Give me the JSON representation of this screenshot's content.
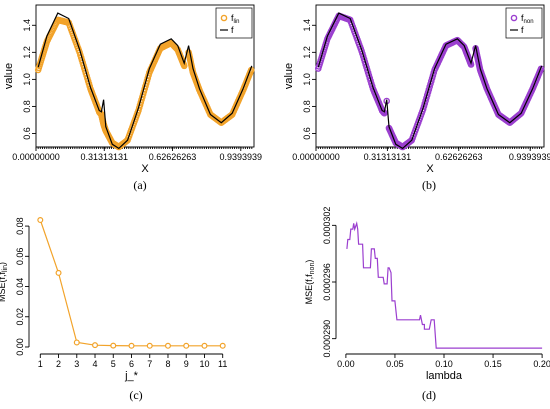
{
  "chart_data": [
    {
      "type": "scatter",
      "caption": "(a)",
      "xlabel": "X",
      "ylabel": "value",
      "xlim": [
        0,
        1
      ],
      "ylim": [
        0.5,
        1.55
      ],
      "x_tick_labels": [
        "0.00000000",
        "0.31313131",
        "0.62626263",
        "0.9393939"
      ],
      "x_ticks": [
        0,
        0.31313131,
        0.62626263,
        0.9393939
      ],
      "y_ticks": [
        0.6,
        0.8,
        1.0,
        1.2,
        1.4
      ],
      "y_tick_labels": [
        "0.6",
        "0.8",
        "1.0",
        "1.2",
        "1.4"
      ],
      "legend": {
        "placement": "top-right",
        "entries": [
          {
            "label": "f",
            "sub": "lin"
          },
          {
            "label": "f",
            "sub": ""
          }
        ]
      },
      "colors": {
        "fit": "#f2a32a",
        "truth": "#000000"
      },
      "series": [
        {
          "name": "f_lin",
          "style": "points",
          "x": [
            0.01,
            0.05,
            0.1,
            0.15,
            0.2,
            0.25,
            0.29,
            0.3,
            0.31,
            0.32,
            0.35,
            0.38,
            0.42,
            0.47,
            0.52,
            0.57,
            0.62,
            0.65,
            0.68,
            0.7,
            0.72,
            0.75,
            0.8,
            0.85,
            0.9,
            0.95,
            0.99
          ],
          "y": [
            1.07,
            1.28,
            1.44,
            1.42,
            1.2,
            0.93,
            0.76,
            0.74,
            0.67,
            0.62,
            0.53,
            0.5,
            0.55,
            0.77,
            1.05,
            1.23,
            1.27,
            1.22,
            1.1,
            1.2,
            1.05,
            0.92,
            0.74,
            0.68,
            0.74,
            0.92,
            1.08
          ]
        },
        {
          "name": "f",
          "style": "line",
          "x": [
            0.01,
            0.05,
            0.1,
            0.15,
            0.2,
            0.25,
            0.29,
            0.3,
            0.31,
            0.32,
            0.35,
            0.38,
            0.42,
            0.47,
            0.52,
            0.57,
            0.62,
            0.65,
            0.68,
            0.7,
            0.72,
            0.75,
            0.8,
            0.85,
            0.9,
            0.95,
            0.99
          ],
          "y": [
            1.09,
            1.32,
            1.49,
            1.45,
            1.22,
            0.94,
            0.77,
            0.76,
            0.85,
            0.65,
            0.52,
            0.49,
            0.55,
            0.79,
            1.08,
            1.26,
            1.3,
            1.25,
            1.12,
            1.25,
            1.08,
            0.93,
            0.74,
            0.68,
            0.75,
            0.93,
            1.1
          ]
        }
      ]
    },
    {
      "type": "scatter",
      "caption": "(b)",
      "xlabel": "X",
      "ylabel": "value",
      "xlim": [
        0,
        1
      ],
      "ylim": [
        0.5,
        1.55
      ],
      "x_tick_labels": [
        "0.00000000",
        "0.31313131",
        "0.62626263",
        "0.9393939"
      ],
      "x_ticks": [
        0,
        0.31313131,
        0.62626263,
        0.9393939
      ],
      "y_ticks": [
        0.6,
        0.8,
        1.0,
        1.2,
        1.4
      ],
      "y_tick_labels": [
        "0.6",
        "0.8",
        "1.0",
        "1.2",
        "1.4"
      ],
      "legend": {
        "placement": "top-right",
        "entries": [
          {
            "label": "f",
            "sub": "non"
          },
          {
            "label": "f",
            "sub": ""
          }
        ]
      },
      "colors": {
        "fit": "#9b3fcf",
        "truth": "#000000"
      },
      "series": [
        {
          "name": "f_non",
          "style": "points",
          "x": [
            0.01,
            0.05,
            0.1,
            0.15,
            0.2,
            0.25,
            0.29,
            0.3,
            0.31,
            0.32,
            0.35,
            0.38,
            0.42,
            0.47,
            0.52,
            0.57,
            0.62,
            0.65,
            0.68,
            0.7,
            0.72,
            0.75,
            0.8,
            0.85,
            0.9,
            0.95,
            0.99
          ],
          "y": [
            1.08,
            1.3,
            1.47,
            1.44,
            1.21,
            0.93,
            0.77,
            0.75,
            0.84,
            0.64,
            0.53,
            0.5,
            0.55,
            0.78,
            1.07,
            1.25,
            1.29,
            1.24,
            1.11,
            1.23,
            1.07,
            0.93,
            0.74,
            0.68,
            0.75,
            0.93,
            1.09
          ]
        },
        {
          "name": "f",
          "style": "line",
          "x": [
            0.01,
            0.05,
            0.1,
            0.15,
            0.2,
            0.25,
            0.29,
            0.3,
            0.31,
            0.32,
            0.35,
            0.38,
            0.42,
            0.47,
            0.52,
            0.57,
            0.62,
            0.65,
            0.68,
            0.7,
            0.72,
            0.75,
            0.8,
            0.85,
            0.9,
            0.95,
            0.99
          ],
          "y": [
            1.09,
            1.32,
            1.49,
            1.45,
            1.22,
            0.94,
            0.77,
            0.76,
            0.85,
            0.65,
            0.52,
            0.49,
            0.55,
            0.79,
            1.08,
            1.26,
            1.3,
            1.25,
            1.12,
            1.25,
            1.08,
            0.93,
            0.74,
            0.68,
            0.75,
            0.93,
            1.1
          ]
        }
      ]
    },
    {
      "type": "line",
      "caption": "(c)",
      "xlabel": "j_*",
      "ylabel_main": "MSE(f,f",
      "ylabel_sub": "lin",
      "ylabel_end": ")",
      "xlim": [
        0.6,
        11.4
      ],
      "ylim": [
        -0.002,
        0.088
      ],
      "x_ticks": [
        1,
        2,
        3,
        4,
        5,
        6,
        7,
        8,
        9,
        10,
        11
      ],
      "x_tick_labels": [
        "1",
        "2",
        "3",
        "4",
        "5",
        "6",
        "7",
        "8",
        "9",
        "10",
        "11"
      ],
      "y_ticks": [
        0,
        0.02,
        0.04,
        0.06,
        0.08
      ],
      "y_tick_labels": [
        "0.00",
        "0.02",
        "0.04",
        "0.06",
        "0.08"
      ],
      "color": "#f2a32a",
      "series": [
        {
          "x": [
            1,
            2,
            3,
            4,
            5,
            6,
            7,
            8,
            9,
            10,
            11
          ],
          "y": [
            0.084,
            0.049,
            0.003,
            0.0012,
            0.0009,
            0.0008,
            0.0008,
            0.0008,
            0.0008,
            0.0008,
            0.0008
          ]
        }
      ]
    },
    {
      "type": "line",
      "caption": "(d)",
      "xlabel": "lambda",
      "ylabel_main": "MSE(f,f",
      "ylabel_sub": "non",
      "ylabel_end": ")",
      "xlim": [
        -0.006,
        0.206
      ],
      "ylim": [
        0.0002888,
        0.0003032
      ],
      "x_ticks": [
        0,
        0.05,
        0.1,
        0.15,
        0.2
      ],
      "x_tick_labels": [
        "0.00",
        "0.05",
        "0.10",
        "0.15",
        "0.20"
      ],
      "y_ticks": [
        0.00029,
        0.000296,
        0.000302
      ],
      "y_tick_labels": [
        "0.000290",
        "0.000296",
        "0.000302"
      ],
      "color": "#9b3fcf",
      "series": [
        {
          "x": [
            0.001,
            0.002,
            0.004,
            0.005,
            0.007,
            0.008,
            0.009,
            0.011,
            0.012,
            0.013,
            0.017,
            0.018,
            0.025,
            0.026,
            0.029,
            0.03,
            0.032,
            0.033,
            0.038,
            0.039,
            0.042,
            0.043,
            0.044,
            0.046,
            0.047,
            0.05,
            0.052,
            0.075,
            0.076,
            0.078,
            0.08,
            0.08,
            0.085,
            0.087,
            0.09,
            0.092,
            0.095,
            0.2
          ],
          "y": [
            0.0002995,
            0.0003005,
            0.0003005,
            0.0003016,
            0.0003016,
            0.0003022,
            0.0003016,
            0.0003022,
            0.0003016,
            0.0003,
            0.0003,
            0.0002975,
            0.0002975,
            0.0002995,
            0.0002995,
            0.0002985,
            0.0002985,
            0.0002965,
            0.0002965,
            0.0002958,
            0.0002958,
            0.0002975,
            0.0002975,
            0.000297,
            0.000294,
            0.000294,
            0.000292,
            0.000292,
            0.0002925,
            0.0002915,
            0.0002915,
            0.000291,
            0.000291,
            0.000292,
            0.000292,
            0.000289,
            0.000289,
            0.000289
          ]
        }
      ]
    }
  ]
}
